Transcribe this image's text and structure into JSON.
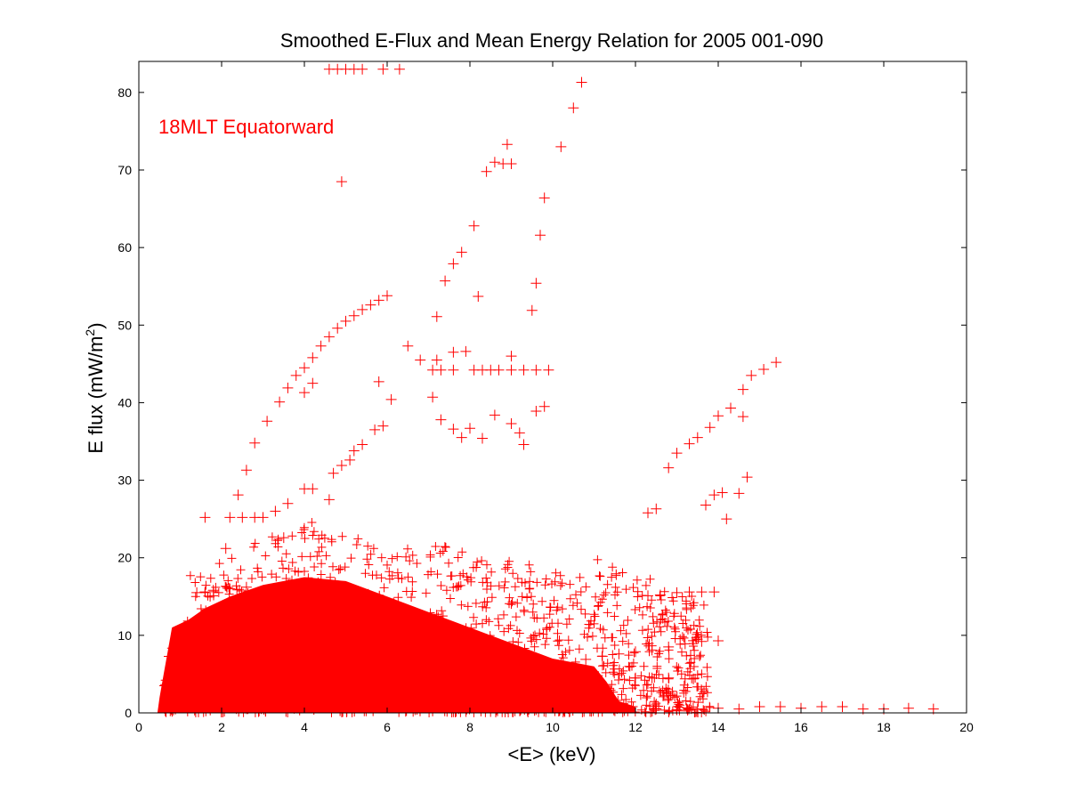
{
  "chart_data": {
    "type": "scatter",
    "title": "Smoothed E-Flux and Mean Energy Relation for 2005 001-090",
    "xlabel": "<E> (keV)",
    "ylabel_main": "E flux (mW/m",
    "ylabel_sup": "2",
    "ylabel_close": ")",
    "annotation": "18MLT Equatorward",
    "xlim": [
      0,
      20
    ],
    "ylim": [
      0,
      84
    ],
    "xticks": [
      0,
      2,
      4,
      6,
      8,
      10,
      12,
      14,
      16,
      18,
      20
    ],
    "yticks": [
      0,
      10,
      20,
      30,
      40,
      50,
      60,
      70,
      80
    ],
    "marker": "plus",
    "color": "#ff0000",
    "grid": false,
    "series": [
      {
        "points": [
          [
            4.6,
            83
          ],
          [
            4.8,
            83
          ],
          [
            5.0,
            83
          ],
          [
            5.2,
            83
          ],
          [
            5.4,
            83
          ],
          [
            5.9,
            83
          ],
          [
            6.3,
            83
          ],
          [
            10.7,
            81.3
          ],
          [
            10.5,
            78
          ],
          [
            8.9,
            73.3
          ],
          [
            10.2,
            73
          ],
          [
            8.6,
            71
          ],
          [
            8.8,
            70.8
          ],
          [
            9.0,
            70.8
          ],
          [
            8.4,
            69.8
          ],
          [
            4.9,
            68.5
          ],
          [
            9.8,
            66.4
          ],
          [
            8.1,
            62.8
          ],
          [
            9.7,
            61.6
          ],
          [
            7.8,
            59.4
          ],
          [
            7.6,
            57.9
          ],
          [
            9.6,
            55.4
          ],
          [
            7.4,
            55.7
          ],
          [
            8.2,
            53.7
          ],
          [
            7.2,
            51.1
          ],
          [
            9.5,
            51.9
          ],
          [
            6.0,
            53.8
          ],
          [
            5.8,
            53.2
          ],
          [
            5.6,
            52.6
          ],
          [
            5.4,
            52.0
          ],
          [
            5.2,
            51.2
          ],
          [
            5.0,
            50.5
          ],
          [
            4.8,
            49.6
          ],
          [
            4.6,
            48.5
          ],
          [
            4.4,
            47.3
          ],
          [
            4.2,
            45.8
          ],
          [
            4.0,
            44.5
          ],
          [
            3.8,
            43.5
          ],
          [
            3.6,
            41.9
          ],
          [
            3.4,
            40.1
          ],
          [
            3.1,
            37.6
          ],
          [
            2.8,
            34.8
          ],
          [
            2.6,
            31.3
          ],
          [
            2.4,
            28.1
          ],
          [
            4.2,
            42.5
          ],
          [
            4.0,
            41.3
          ],
          [
            5.8,
            42.7
          ],
          [
            6.1,
            40.4
          ],
          [
            5.9,
            37.0
          ],
          [
            5.7,
            36.5
          ],
          [
            5.4,
            34.6
          ],
          [
            5.2,
            33.8
          ],
          [
            5.1,
            32.6
          ],
          [
            4.9,
            31.9
          ],
          [
            4.7,
            30.9
          ],
          [
            7.1,
            44.2
          ],
          [
            7.3,
            44.2
          ],
          [
            7.6,
            44.2
          ],
          [
            8.1,
            44.2
          ],
          [
            8.3,
            44.2
          ],
          [
            8.5,
            44.2
          ],
          [
            8.7,
            44.2
          ],
          [
            9.0,
            44.2
          ],
          [
            9.3,
            44.2
          ],
          [
            9.6,
            44.2
          ],
          [
            9.9,
            44.2
          ],
          [
            6.5,
            47.3
          ],
          [
            6.8,
            45.5
          ],
          [
            7.2,
            45.5
          ],
          [
            7.6,
            46.5
          ],
          [
            7.9,
            46.6
          ],
          [
            9.0,
            46.0
          ],
          [
            7.1,
            40.7
          ],
          [
            7.3,
            37.8
          ],
          [
            7.6,
            36.6
          ],
          [
            7.8,
            35.5
          ],
          [
            8.0,
            36.7
          ],
          [
            8.6,
            38.4
          ],
          [
            8.3,
            35.4
          ],
          [
            9.0,
            37.3
          ],
          [
            9.2,
            36.1
          ],
          [
            9.6,
            38.9
          ],
          [
            9.8,
            39.5
          ],
          [
            9.3,
            34.6
          ],
          [
            15.4,
            45.2
          ],
          [
            15.1,
            44.3
          ],
          [
            14.8,
            43.5
          ],
          [
            14.6,
            41.7
          ],
          [
            14.3,
            39.3
          ],
          [
            14.0,
            38.3
          ],
          [
            13.8,
            36.8
          ],
          [
            13.5,
            35.5
          ],
          [
            13.3,
            34.7
          ],
          [
            13.0,
            33.5
          ],
          [
            12.8,
            31.6
          ],
          [
            14.6,
            38.2
          ],
          [
            14.7,
            30.4
          ],
          [
            14.5,
            28.3
          ],
          [
            14.1,
            28.4
          ],
          [
            13.9,
            28.1
          ],
          [
            13.7,
            26.8
          ],
          [
            14.2,
            25.0
          ],
          [
            12.5,
            26.3
          ],
          [
            12.3,
            25.8
          ],
          [
            1.6,
            25.2
          ],
          [
            2.2,
            25.2
          ],
          [
            2.5,
            25.2
          ],
          [
            2.8,
            25.2
          ],
          [
            3.0,
            25.2
          ],
          [
            3.3,
            26.0
          ],
          [
            3.6,
            27.0
          ],
          [
            4.0,
            28.9
          ],
          [
            4.2,
            28.9
          ],
          [
            4.6,
            27.5
          ],
          [
            3.5,
            22.6
          ],
          [
            2.1,
            21.2
          ],
          [
            1.4,
            15.5
          ],
          [
            1.6,
            15.6
          ],
          [
            1.8,
            15.8
          ],
          [
            2.2,
            16.0
          ],
          [
            2.6,
            16.2
          ],
          [
            12.3,
            15.1
          ],
          [
            12.6,
            15.2
          ],
          [
            13.0,
            15.5
          ],
          [
            13.3,
            15.6
          ],
          [
            13.6,
            15.6
          ],
          [
            13.9,
            15.6
          ],
          [
            14.0,
            9.3
          ],
          [
            13.6,
            9.2
          ],
          [
            13.2,
            8.9
          ],
          [
            12.8,
            8.5
          ],
          [
            12.4,
            8.1
          ],
          [
            12.0,
            7.9
          ],
          [
            11.6,
            7.6
          ],
          [
            11.2,
            7.3
          ],
          [
            10.8,
            6.9
          ],
          [
            12.0,
            4.5
          ],
          [
            12.4,
            4.5
          ],
          [
            12.8,
            4.5
          ],
          [
            13.2,
            4.4
          ],
          [
            13.4,
            4.4
          ],
          [
            12.5,
            0.5
          ],
          [
            13.0,
            0.4
          ],
          [
            13.5,
            0.5
          ],
          [
            14.0,
            0.6
          ],
          [
            14.5,
            0.5
          ],
          [
            15.0,
            0.8
          ],
          [
            15.5,
            0.8
          ],
          [
            16.0,
            0.6
          ],
          [
            16.5,
            0.8
          ],
          [
            17.0,
            0.8
          ],
          [
            17.5,
            0.5
          ],
          [
            18.0,
            0.5
          ],
          [
            18.6,
            0.6
          ],
          [
            19.2,
            0.5
          ]
        ]
      }
    ]
  }
}
